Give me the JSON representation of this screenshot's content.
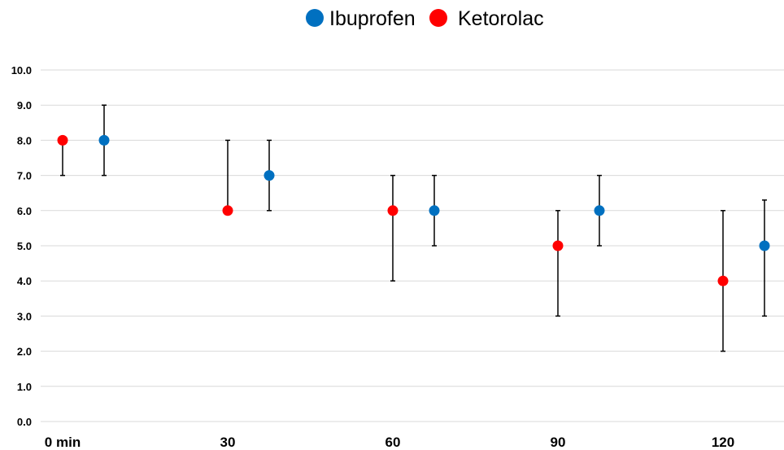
{
  "chart_data": {
    "type": "scatter",
    "title": "",
    "xlabel": "",
    "ylabel": "",
    "ylim": [
      0,
      10
    ],
    "y_ticks": [
      "0.0",
      "1.0",
      "2.0",
      "3.0",
      "4.0",
      "5.0",
      "6.0",
      "7.0",
      "8.0",
      "9.0",
      "10.0"
    ],
    "grid": true,
    "legend_position": "top-center",
    "categories": [
      "0 min",
      "30",
      "60",
      "90",
      "120"
    ],
    "series": [
      {
        "name": "Ibuprofen",
        "color": "#0070c0",
        "values": [
          8,
          7,
          6,
          6,
          5
        ],
        "error_low": [
          7,
          6,
          5,
          5,
          3
        ],
        "error_high": [
          9,
          8,
          7,
          7,
          6.3
        ]
      },
      {
        "name": "Ketorolac",
        "color": "#ff0000",
        "values": [
          8,
          6,
          6,
          5,
          4
        ],
        "error_low": [
          7,
          6,
          4,
          3,
          2
        ],
        "error_high": [
          8,
          8,
          7,
          6,
          6
        ]
      }
    ]
  }
}
